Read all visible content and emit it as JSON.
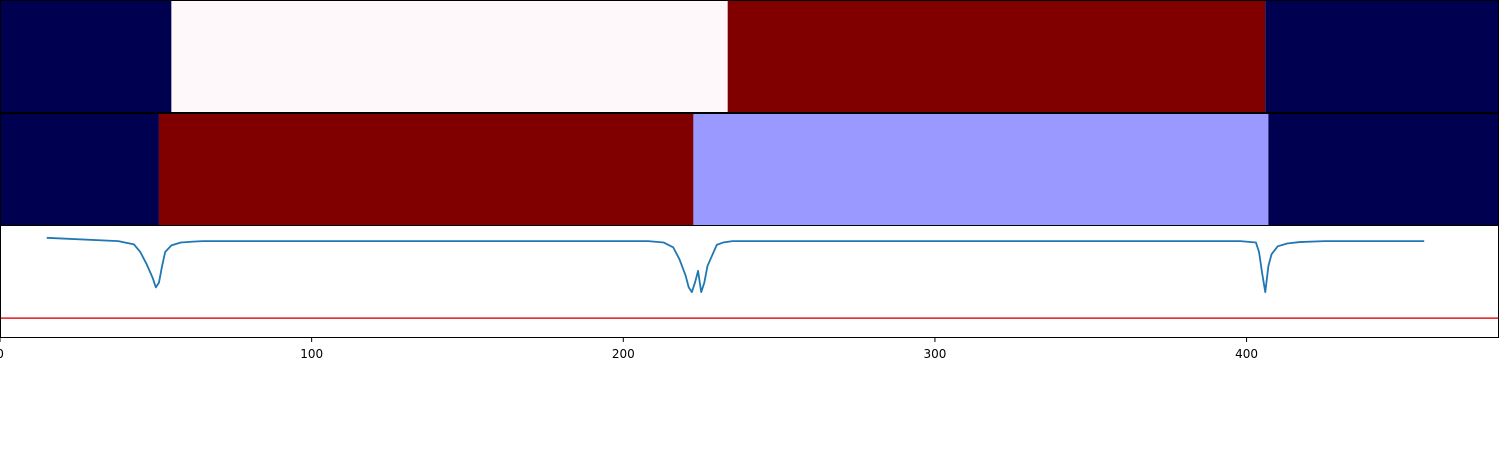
{
  "chart_data": [
    {
      "type": "heatmap",
      "panel": "top-strip",
      "xlim": [
        0,
        481
      ],
      "segments": [
        {
          "start": 0,
          "end": 55,
          "color": "#000050"
        },
        {
          "start": 55,
          "end": 233.5,
          "color": "#fff8fb"
        },
        {
          "start": 233.5,
          "end": 406,
          "color": "#800000"
        },
        {
          "start": 406,
          "end": 481,
          "color": "#000050"
        }
      ]
    },
    {
      "type": "heatmap",
      "panel": "middle-strip",
      "xlim": [
        0,
        481
      ],
      "segments": [
        {
          "start": 0,
          "end": 51,
          "color": "#000050"
        },
        {
          "start": 51,
          "end": 222.5,
          "color": "#800000"
        },
        {
          "start": 222.5,
          "end": 407,
          "color": "#9999ff"
        },
        {
          "start": 407,
          "end": 481,
          "color": "#000050"
        }
      ]
    },
    {
      "type": "line",
      "panel": "bottom-plot",
      "xlim": [
        0,
        481
      ],
      "ylim": [
        -2.0,
        0.35
      ],
      "x_ticks": [
        0,
        100,
        200,
        300,
        400
      ],
      "x_tick_labels": [
        "0",
        "100",
        "200",
        "300",
        "400"
      ],
      "threshold": {
        "value": -1.6,
        "color": "#e31a1c"
      },
      "series": [
        {
          "color": "#1f77b4",
          "points": [
            [
              15,
              0.1
            ],
            [
              38,
              0.03
            ],
            [
              43,
              -0.04
            ],
            [
              45,
              -0.2
            ],
            [
              47,
              -0.45
            ],
            [
              49,
              -0.75
            ],
            [
              50,
              -0.95
            ],
            [
              51,
              -0.85
            ],
            [
              52,
              -0.5
            ],
            [
              53,
              -0.2
            ],
            [
              55,
              -0.06
            ],
            [
              58,
              0.0
            ],
            [
              62,
              0.02
            ],
            [
              65,
              0.03
            ],
            [
              208,
              0.03
            ],
            [
              213,
              0.0
            ],
            [
              216,
              -0.1
            ],
            [
              218,
              -0.35
            ],
            [
              220,
              -0.7
            ],
            [
              221,
              -0.95
            ],
            [
              222,
              -1.05
            ],
            [
              223,
              -0.85
            ],
            [
              224,
              -0.6
            ],
            [
              225,
              -1.05
            ],
            [
              226,
              -0.85
            ],
            [
              227,
              -0.5
            ],
            [
              228,
              -0.35
            ],
            [
              230,
              -0.05
            ],
            [
              232,
              0.0
            ],
            [
              235,
              0.03
            ],
            [
              398,
              0.03
            ],
            [
              403,
              0.0
            ],
            [
              404,
              -0.2
            ],
            [
              405,
              -0.65
            ],
            [
              406,
              -1.05
            ],
            [
              407,
              -0.5
            ],
            [
              408,
              -0.25
            ],
            [
              410,
              -0.08
            ],
            [
              413,
              -0.02
            ],
            [
              417,
              0.01
            ],
            [
              425,
              0.03
            ],
            [
              457,
              0.03
            ]
          ]
        }
      ]
    }
  ]
}
